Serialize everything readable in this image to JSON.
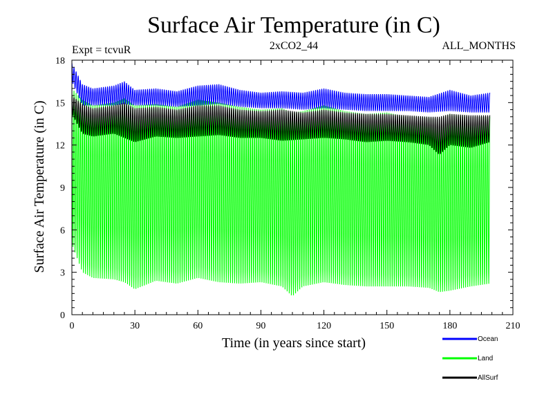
{
  "chart_data": {
    "type": "line",
    "title": "Surface Air Temperature (in C)",
    "subtitle_left": "Expt = tcvuR",
    "subtitle_center": "2xCO2_44",
    "subtitle_right": "ALL_MONTHS",
    "xlabel": "Time (in years since start)",
    "ylabel": "Surface Air Temperature (in C)",
    "xlim": [
      0,
      210
    ],
    "ylim": [
      0,
      18
    ],
    "x_ticks": [
      0,
      30,
      60,
      90,
      120,
      150,
      180,
      210
    ],
    "y_ticks": [
      0,
      3,
      6,
      9,
      12,
      15,
      18
    ],
    "x_tick_labels": [
      "0",
      "30",
      "60",
      "90",
      "120",
      "150",
      "180",
      "210"
    ],
    "y_tick_labels": [
      "0",
      "3",
      "6",
      "9",
      "12",
      "15",
      "18"
    ],
    "data_x_range": [
      0,
      199
    ],
    "legend_placement": "below-right",
    "grid": false,
    "series": [
      {
        "name": "Ocean",
        "color": "#0000ff",
        "note": "monthly values; annual cycle envelope",
        "x": [
          0,
          5,
          10,
          20,
          25,
          30,
          40,
          50,
          60,
          70,
          80,
          90,
          100,
          110,
          120,
          130,
          140,
          150,
          160,
          170,
          180,
          190,
          199
        ],
        "upper": [
          17.8,
          16.3,
          16.0,
          16.2,
          16.5,
          15.9,
          16.0,
          15.8,
          16.2,
          16.3,
          15.9,
          15.7,
          15.8,
          15.7,
          16.0,
          15.7,
          15.6,
          15.6,
          15.5,
          15.4,
          15.9,
          15.5,
          15.7
        ],
        "lower": [
          16.5,
          14.8,
          14.8,
          14.8,
          14.9,
          14.8,
          14.8,
          14.7,
          14.8,
          14.9,
          14.7,
          14.6,
          14.6,
          14.5,
          14.6,
          14.5,
          14.4,
          14.4,
          14.4,
          14.3,
          14.4,
          14.3,
          14.3
        ]
      },
      {
        "name": "Land",
        "color": "#00ff00",
        "note": "monthly values; annual cycle envelope",
        "x": [
          0,
          5,
          10,
          20,
          25,
          30,
          40,
          50,
          60,
          70,
          80,
          90,
          100,
          105,
          110,
          120,
          130,
          140,
          150,
          160,
          170,
          175,
          180,
          190,
          199
        ],
        "upper": [
          16.0,
          15.2,
          14.8,
          15.0,
          15.3,
          14.8,
          14.9,
          14.7,
          15.2,
          15.0,
          14.7,
          14.5,
          14.6,
          14.3,
          14.4,
          14.8,
          14.4,
          14.2,
          14.3,
          14.0,
          14.0,
          13.8,
          14.2,
          14.0,
          14.0
        ],
        "lower": [
          5.0,
          3.0,
          2.6,
          2.5,
          2.3,
          1.8,
          2.4,
          2.2,
          2.6,
          2.3,
          2.2,
          2.3,
          2.0,
          1.3,
          2.0,
          2.3,
          2.1,
          2.0,
          2.0,
          2.0,
          1.9,
          1.6,
          1.7,
          2.0,
          2.2
        ]
      },
      {
        "name": "AllSurf",
        "color": "#000000",
        "note": "monthly values; annual cycle envelope",
        "x": [
          0,
          5,
          10,
          20,
          25,
          30,
          40,
          50,
          60,
          70,
          80,
          90,
          100,
          110,
          120,
          130,
          140,
          150,
          160,
          170,
          175,
          180,
          190,
          199
        ],
        "upper": [
          15.5,
          14.9,
          14.6,
          14.8,
          15.0,
          14.6,
          14.7,
          14.5,
          14.8,
          14.8,
          14.5,
          14.4,
          14.5,
          14.3,
          14.5,
          14.3,
          14.2,
          14.2,
          14.1,
          14.0,
          14.0,
          14.2,
          14.1,
          14.1
        ],
        "lower": [
          14.2,
          12.8,
          12.6,
          12.8,
          12.5,
          12.2,
          12.6,
          12.5,
          12.6,
          12.7,
          12.5,
          12.5,
          12.3,
          12.4,
          12.5,
          12.4,
          12.2,
          12.3,
          12.2,
          12.0,
          11.3,
          12.0,
          11.8,
          12.2
        ]
      }
    ]
  }
}
